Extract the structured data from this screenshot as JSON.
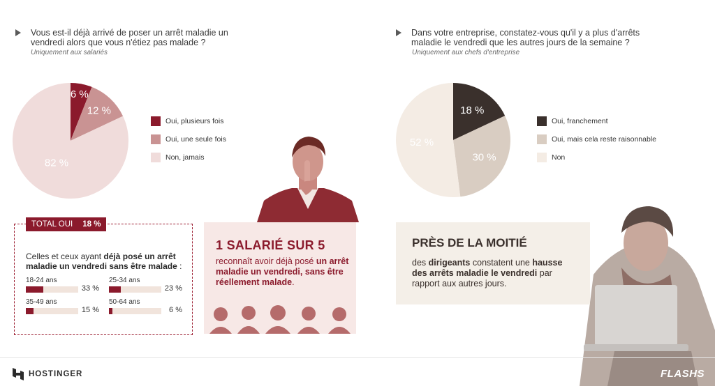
{
  "left": {
    "question": "Vous est-il déjà arrivé de poser un arrêt maladie un vendredi alors que vous n'étiez pas malade ?",
    "subtitle": "Uniquement aux salariés",
    "chart_data": {
      "type": "pie",
      "categories": [
        "Oui, plusieurs fois",
        "Oui, une seule fois",
        "Non, jamais"
      ],
      "values": [
        6,
        12,
        82
      ],
      "labels": [
        "6 %",
        "12 %",
        "82 %"
      ],
      "colors": [
        "#8b1a2c",
        "#c99393",
        "#f0dcdb"
      ],
      "legend_position": "right"
    },
    "total": {
      "label": "TOTAL OUI",
      "value": "18 %"
    },
    "ages_intro_1": "Celles et ceux ayant ",
    "ages_intro_bold": "déjà posé un arrêt maladie un vendredi sans être malade",
    "ages_intro_2": " :",
    "ages": [
      {
        "label": "18-24 ans",
        "value": 33,
        "display": "33 %"
      },
      {
        "label": "25-34 ans",
        "value": 23,
        "display": "23 %"
      },
      {
        "label": "35-49 ans",
        "value": 15,
        "display": "15 %"
      },
      {
        "label": "50-64 ans",
        "value": 6,
        "display": "6 %"
      }
    ],
    "card": {
      "headline": "1 SALARIÉ SUR 5",
      "text_1": "reconnaît avoir déjà posé ",
      "text_bold": "un arrêt maladie un vendredi, sans être réellement malade",
      "text_2": "."
    }
  },
  "right": {
    "question": "Dans votre entreprise, constatez-vous qu'il y a plus d'arrêts maladie le vendredi que les autres jours de la semaine ?",
    "subtitle": "Uniquement aux chefs d'entreprise",
    "chart_data": {
      "type": "pie",
      "categories": [
        "Oui, franchement",
        "Oui, mais cela reste raisonnable",
        "Non"
      ],
      "values": [
        18,
        30,
        52
      ],
      "labels": [
        "18 %",
        "30 %",
        "52 %"
      ],
      "colors": [
        "#3a302c",
        "#d9cdc2",
        "#f4ece4"
      ],
      "label_colors": [
        "#ffffff",
        "#3a302c",
        "#3a302c"
      ],
      "legend_position": "right"
    },
    "card": {
      "headline": "PRÈS DE LA MOITIÉ",
      "text_1": "des ",
      "text_bold_1": "dirigeants",
      "text_2": " constatent une ",
      "text_bold_2": "hausse des arrêts maladie le vendredi",
      "text_3": " par rapport aux autres jours."
    }
  },
  "footer": {
    "brand": "HOSTINGER",
    "flash": "FLASHS"
  },
  "colors": {
    "accent": "#8b1a2c",
    "dark": "#3a302c"
  }
}
